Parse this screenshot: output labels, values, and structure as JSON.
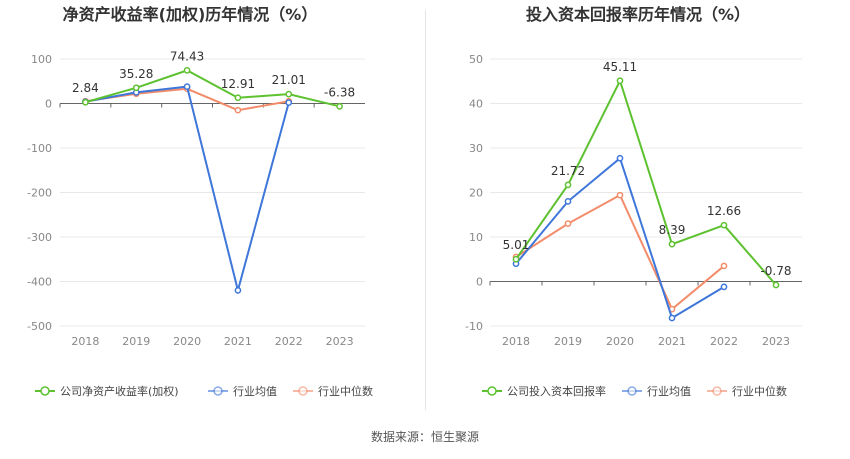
{
  "source_text": "数据来源：恒生聚源",
  "colors": {
    "company": "#5dc130",
    "avg": "#3e76d9",
    "median": "#f28c6a",
    "grid": "#e8e8e8",
    "axis": "#888888"
  },
  "chart_data": [
    {
      "type": "line",
      "title": "净资产收益率(加权)历年情况（%）",
      "categories": [
        "2018",
        "2019",
        "2020",
        "2021",
        "2022",
        "2023"
      ],
      "ylim": [
        -500,
        100
      ],
      "yticks": [
        100,
        0,
        -100,
        -200,
        -300,
        -400,
        -500
      ],
      "ytick_labels": [
        "100",
        "0",
        "-100",
        "-200",
        "-300",
        "-400",
        "-500"
      ],
      "grid": true,
      "legend_position": "bottom",
      "series": [
        {
          "name": "公司净资产收益率(加权)",
          "key": "company",
          "values": [
            2.84,
            35.28,
            74.43,
            12.91,
            21.01,
            -6.38
          ],
          "labels": [
            "2.84",
            "35.28",
            "74.43",
            "12.91",
            "21.01",
            "-6.38"
          ]
        },
        {
          "name": "行业均值",
          "key": "avg",
          "values": [
            4,
            25,
            38,
            -420,
            2,
            null
          ]
        },
        {
          "name": "行业中位数",
          "key": "median",
          "values": [
            5,
            22,
            33,
            -15,
            5,
            null
          ]
        }
      ]
    },
    {
      "type": "line",
      "title": "投入资本回报率历年情况（%）",
      "categories": [
        "2018",
        "2019",
        "2020",
        "2021",
        "2022",
        "2023"
      ],
      "ylim": [
        -10,
        50
      ],
      "yticks": [
        50,
        40,
        30,
        20,
        10,
        0,
        -10
      ],
      "ytick_labels": [
        "50",
        "40",
        "30",
        "20",
        "10",
        "0",
        "-10"
      ],
      "grid": true,
      "legend_position": "bottom",
      "series": [
        {
          "name": "公司投入资本回报率",
          "key": "company",
          "values": [
            5.01,
            21.72,
            45.11,
            8.39,
            12.66,
            -0.78
          ],
          "labels": [
            "5.01",
            "21.72",
            "45.11",
            "8.39",
            "12.66",
            "-0.78"
          ]
        },
        {
          "name": "行业均值",
          "key": "avg",
          "values": [
            4,
            18,
            27.7,
            -8.2,
            -1.2,
            null
          ]
        },
        {
          "name": "行业中位数",
          "key": "median",
          "values": [
            5.5,
            13,
            19.4,
            -6.2,
            3.5,
            null
          ]
        }
      ]
    }
  ]
}
